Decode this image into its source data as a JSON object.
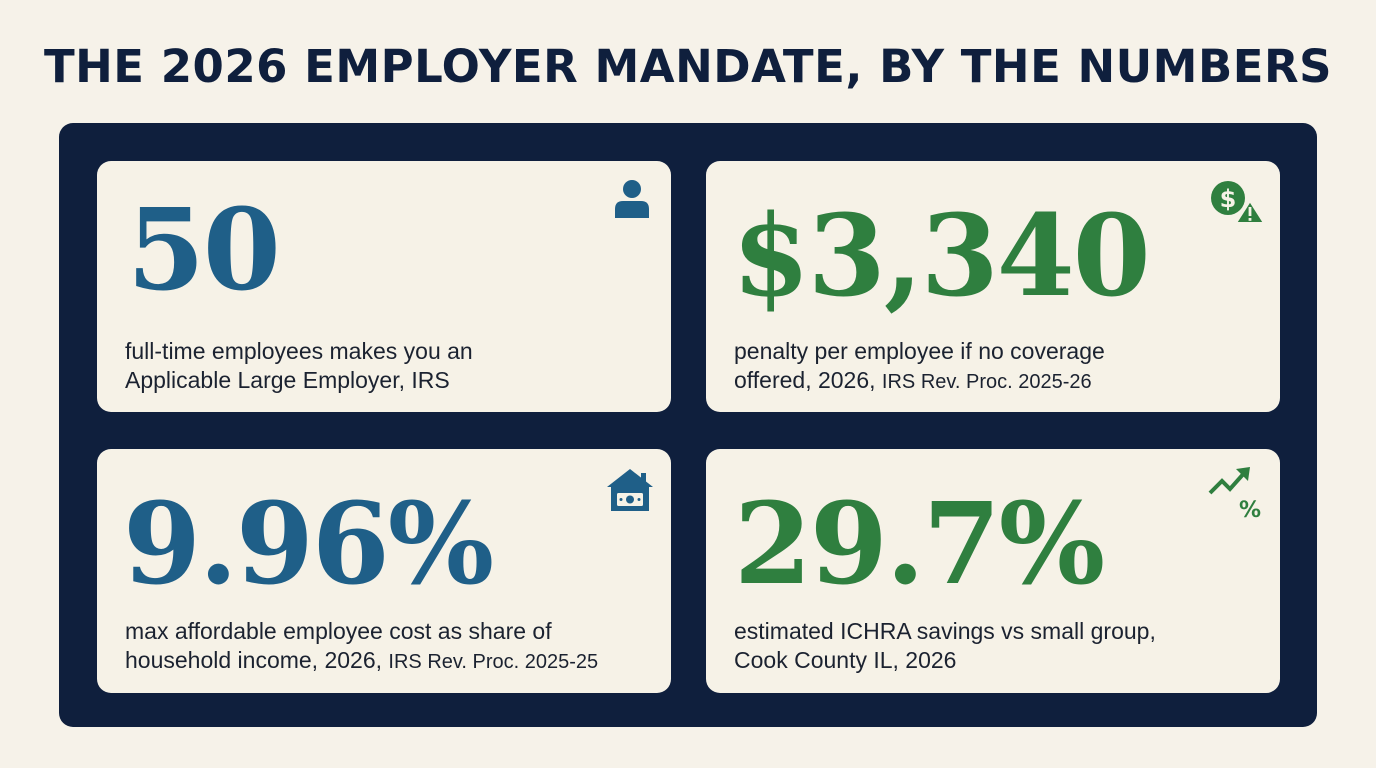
{
  "title": "THE 2026 EMPLOYER MANDATE, BY THE NUMBERS",
  "colors": {
    "background": "#f6f2e9",
    "panel": "#0f1f3d",
    "card": "#f6f2e7",
    "blue": "#1f5f88",
    "green": "#2f7f3f",
    "text": "#1b2230"
  },
  "cards": [
    {
      "stat": "50",
      "color": "blue",
      "icon": "person-icon",
      "desc_line1": "full-time employees makes you an",
      "desc_line2": "Applicable Large Employer, IRS",
      "source": ""
    },
    {
      "stat": "$3,340",
      "color": "green",
      "icon": "dollar-warning-icon",
      "desc_line1": "penalty per employee if no coverage",
      "desc_line2": "offered, 2026,",
      "source": "IRS Rev. Proc. 2025-26"
    },
    {
      "stat": "9.96%",
      "color": "blue",
      "icon": "house-money-icon",
      "desc_line1": "max affordable employee cost as share of",
      "desc_line2": "household income, 2026,",
      "source": "IRS Rev. Proc. 2025-25"
    },
    {
      "stat": "29.7%",
      "color": "green",
      "icon": "trend-up-percent-icon",
      "desc_line1": "estimated ICHRA savings vs small group,",
      "desc_line2": "Cook County IL, 2026",
      "source": ""
    }
  ]
}
